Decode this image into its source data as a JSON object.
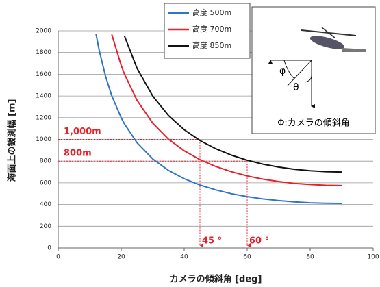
{
  "chart_data": {
    "type": "line",
    "x_label": "カメラの傾斜角 [deg]",
    "y_label": "海面上の観測幅 [m]",
    "x": [
      12,
      13,
      15,
      17,
      20,
      21,
      25,
      30,
      35,
      40,
      45,
      50,
      55,
      60,
      65,
      70,
      75,
      80,
      85,
      90
    ],
    "series": [
      {
        "name": "高度 500m",
        "color": "#2e75c6",
        "values": [
          1972,
          1823,
          1584,
          1402,
          1199,
          1144,
          970,
          820,
          715,
          638,
          580,
          535,
          500,
          473,
          452,
          436,
          424,
          416,
          412,
          410
        ]
      },
      {
        "name": "高度 700m",
        "color": "#e8202a",
        "values": [
          null,
          null,
          null,
          1967,
          1681,
          1604,
          1361,
          1150,
          1002,
          895,
          813,
          751,
          702,
          664,
          634,
          612,
          595,
          584,
          577,
          575
        ]
      },
      {
        "name": "高度 850m",
        "color": "#111111",
        "values": [
          null,
          null,
          null,
          null,
          null,
          1955,
          1656,
          1400,
          1220,
          1089,
          990,
          914,
          855,
          808,
          772,
          745,
          725,
          711,
          703,
          700
        ]
      }
    ],
    "xlim": [
      0,
      100
    ],
    "xticks": [
      0,
      20,
      40,
      60,
      80,
      100
    ],
    "ylim": [
      0,
      2000
    ],
    "yticks": [
      0,
      200,
      400,
      600,
      800,
      1000,
      1200,
      1400,
      1600,
      1800,
      2000
    ],
    "grid": true,
    "reference_lines": [
      {
        "label": "1,000m",
        "y": 1000,
        "x": 45
      },
      {
        "label": "800m",
        "y": 800,
        "x": 60
      }
    ],
    "vertical_markers": [
      {
        "label": "45 °",
        "x": 45
      },
      {
        "label": "60 °",
        "x": 60
      }
    ],
    "inset": {
      "phi": "φ",
      "theta": "θ",
      "caption": "Φ:カメラの傾斜角"
    }
  }
}
